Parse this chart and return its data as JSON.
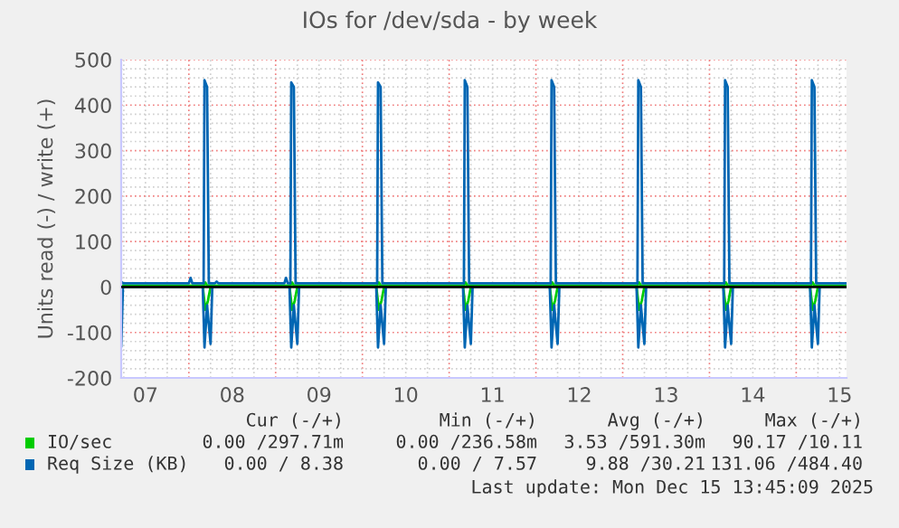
{
  "chart_data": {
    "type": "line",
    "title": "IOs for /dev/sda - by week",
    "ylabel": "Units read (-) / write (+)",
    "xlim": [
      7.22,
      15.58
    ],
    "xticks": [
      {
        "value": 7.5,
        "label": "07"
      },
      {
        "value": 8.5,
        "label": "08"
      },
      {
        "value": 9.5,
        "label": "09"
      },
      {
        "value": 10.5,
        "label": "10"
      },
      {
        "value": 11.5,
        "label": "11"
      },
      {
        "value": 12.5,
        "label": "12"
      },
      {
        "value": 13.5,
        "label": "13"
      },
      {
        "value": 14.5,
        "label": "14"
      },
      {
        "value": 15.5,
        "label": "15"
      }
    ],
    "ylim": [
      -200,
      500
    ],
    "yticks": [
      -200,
      -100,
      0,
      100,
      200,
      300,
      400,
      500
    ],
    "grid": true,
    "legend": "bottom",
    "ref_lines": [
      {
        "axis": "y",
        "value": 0,
        "color": "#000000"
      }
    ],
    "series": [
      {
        "name": "IO/sec",
        "color": "#00cc00",
        "x": [
          7.22,
          8.17,
          8.19,
          8.21,
          9.17,
          9.19,
          9.21,
          10.17,
          10.19,
          10.21,
          11.17,
          11.19,
          11.21,
          12.17,
          12.19,
          12.21,
          13.17,
          13.19,
          13.21,
          14.17,
          14.19,
          14.21,
          15.17,
          15.19,
          15.21,
          15.58
        ],
        "values": [
          3,
          3,
          10,
          3,
          3,
          10,
          3,
          3,
          10,
          3,
          3,
          10,
          3,
          3,
          10,
          3,
          3,
          10,
          3,
          3,
          10,
          3,
          3,
          10,
          3,
          3
        ]
      },
      {
        "color": "#00cc00",
        "x": [
          7.24,
          8.16,
          8.19,
          8.22,
          8.25,
          9.16,
          9.19,
          9.22,
          9.25,
          10.16,
          10.19,
          10.22,
          10.25,
          11.16,
          11.19,
          11.22,
          11.25,
          12.16,
          12.19,
          12.22,
          12.25,
          13.16,
          13.19,
          13.22,
          13.25,
          14.16,
          14.19,
          14.22,
          14.25,
          15.16,
          15.19,
          15.22,
          15.25,
          15.58
        ],
        "values": [
          0,
          0,
          -50,
          -30,
          0,
          0,
          -50,
          -30,
          0,
          0,
          -50,
          -30,
          0,
          0,
          -50,
          -30,
          0,
          0,
          -50,
          -30,
          0,
          0,
          -50,
          -30,
          0,
          0,
          -50,
          -30,
          0,
          0,
          -50,
          -30,
          0,
          0
        ]
      },
      {
        "name": "Req Size (KB)",
        "color": "#0066b3",
        "x": [
          7.22,
          7.24,
          8.0,
          8.02,
          8.04,
          8.17,
          8.18,
          8.21,
          8.23,
          8.3,
          8.32,
          8.34,
          9.1,
          9.12,
          9.14,
          9.17,
          9.18,
          9.21,
          9.23,
          10.17,
          10.18,
          10.21,
          10.23,
          11.17,
          11.18,
          11.21,
          11.23,
          12.17,
          12.18,
          12.21,
          12.23,
          13.17,
          13.18,
          13.21,
          13.23,
          14.17,
          14.18,
          14.21,
          14.23,
          15.17,
          15.18,
          15.21,
          15.23,
          15.58
        ],
        "values": [
          12,
          8,
          8,
          20,
          8,
          8,
          455,
          440,
          8,
          8,
          12,
          8,
          8,
          20,
          8,
          8,
          450,
          440,
          8,
          8,
          450,
          440,
          8,
          8,
          455,
          440,
          8,
          8,
          455,
          440,
          8,
          8,
          455,
          440,
          8,
          8,
          455,
          440,
          8,
          8,
          455,
          440,
          8,
          8
        ]
      },
      {
        "color": "#0066b3",
        "x": [
          7.22,
          7.24,
          8.16,
          8.18,
          8.21,
          8.25,
          8.27,
          9.16,
          9.18,
          9.21,
          9.25,
          9.27,
          10.16,
          10.18,
          10.21,
          10.25,
          10.27,
          11.16,
          11.18,
          11.21,
          11.25,
          11.27,
          12.16,
          12.18,
          12.21,
          12.25,
          12.27,
          13.16,
          13.18,
          13.21,
          13.25,
          13.27,
          14.16,
          14.18,
          14.21,
          14.25,
          14.27,
          15.16,
          15.18,
          15.21,
          15.25,
          15.27,
          15.58
        ],
        "values": [
          -130,
          0,
          0,
          -133,
          -40,
          -125,
          0,
          0,
          -133,
          -40,
          -125,
          0,
          0,
          -133,
          -40,
          -125,
          0,
          0,
          -133,
          -40,
          -125,
          0,
          0,
          -133,
          -40,
          -125,
          0,
          0,
          -133,
          -40,
          -125,
          0,
          0,
          -133,
          -40,
          -125,
          0,
          0,
          -133,
          -40,
          -125,
          0,
          0
        ]
      }
    ],
    "annotations": [
      "Cur (-/+)",
      "Min (-/+)",
      "Avg (-/+)",
      "Max (-/+)",
      "0.00 /297.71m",
      "0.00 /236.58m",
      "3.53 /591.30m",
      "90.17 /10.11",
      "0.00 / 8.38",
      "0.00 / 7.57",
      "9.88 /30.21",
      "131.06 /484.40",
      "Last update: Mon Dec 15 13:45:09 2025"
    ]
  }
}
